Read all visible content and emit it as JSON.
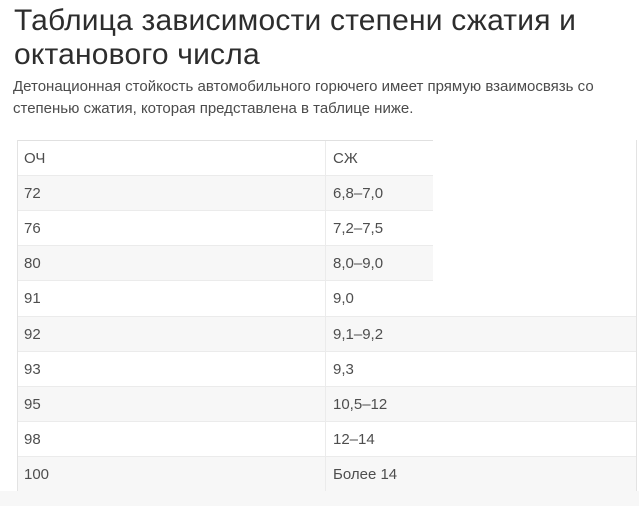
{
  "header": {
    "title": "Таблица зависимости степени сжатия и октанового числа",
    "description": "Детонационная стойкость автомобильного горючего имеет прямую взаимосвязь со степенью сжатия, которая представлена в таблице ниже."
  },
  "table": {
    "columns": [
      "ОЧ",
      "СЖ"
    ],
    "rows": [
      [
        "72",
        "6,8–7,0"
      ],
      [
        "76",
        "7,2–7,5"
      ],
      [
        "80",
        "8,0–9,0"
      ],
      [
        "91",
        "9,0"
      ],
      [
        "92",
        "9,1–9,2"
      ],
      [
        "93",
        "9,3"
      ],
      [
        "95",
        "10,5–12"
      ],
      [
        "98",
        "12–14"
      ],
      [
        "100",
        "Более 14"
      ]
    ]
  },
  "colors": {
    "title_text": "#2d2d2d",
    "body_text": "#4b4b4b",
    "cell_text": "#4e4e4e",
    "row_stripe": "#f7f7f7",
    "border": "#e3e3e3",
    "separator": "#ebebeb",
    "bottom_strip": "#f7f7f7"
  }
}
